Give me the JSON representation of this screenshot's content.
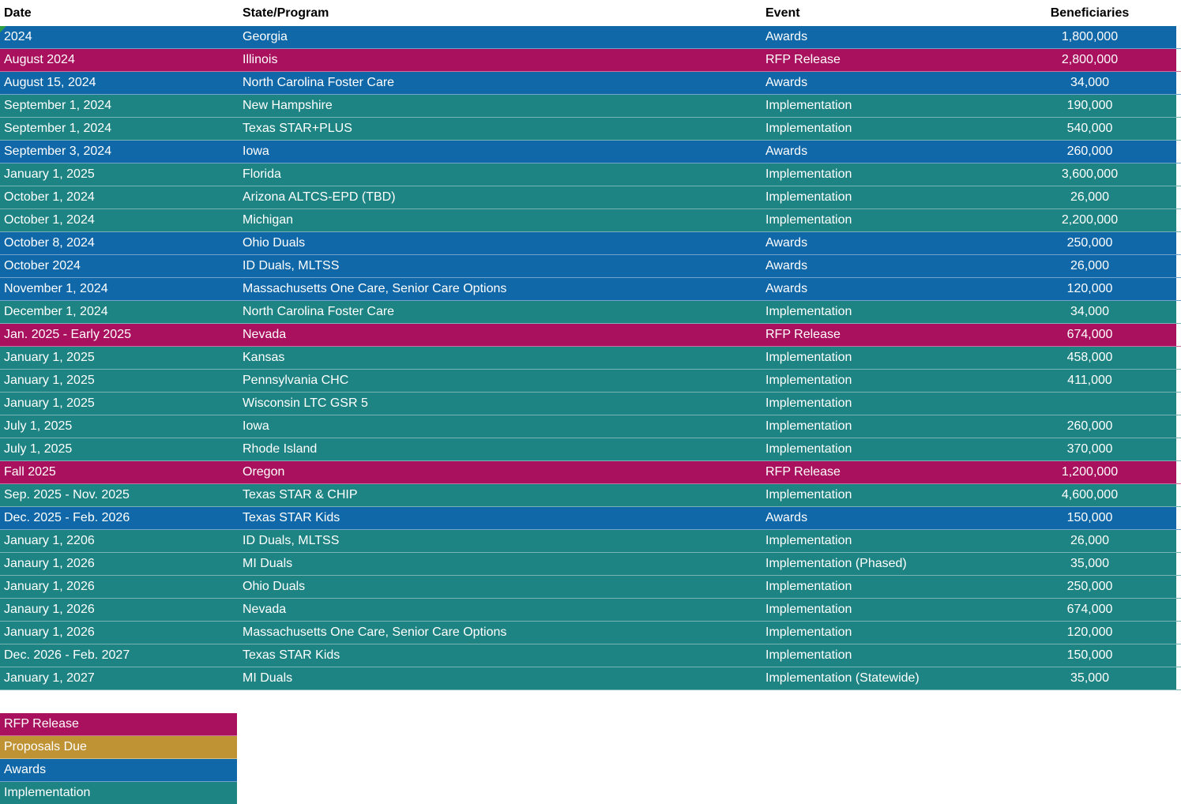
{
  "colors": {
    "rfp": "#A9115E",
    "proposals": "#BF9233",
    "awards": "#1168A8",
    "implementation": "#1E8383",
    "header_text": "#000000",
    "row_text": "#FFFFFF",
    "error_indicator": "#2F9E44"
  },
  "table": {
    "columns": [
      "Date",
      "State/Program",
      "Event",
      "Beneficiaries"
    ],
    "rows": [
      {
        "date": "2024",
        "program": "Georgia",
        "event": "Awards",
        "beneficiaries": "1,800,000",
        "category": "awards",
        "error_indicator": true
      },
      {
        "date": "August 2024",
        "program": "Illinois",
        "event": "RFP Release",
        "beneficiaries": "2,800,000",
        "category": "rfp"
      },
      {
        "date": "August 15, 2024",
        "program": "North Carolina Foster Care",
        "event": "Awards",
        "beneficiaries": "34,000",
        "category": "awards"
      },
      {
        "date": "September 1, 2024",
        "program": "New Hampshire",
        "event": "Implementation",
        "beneficiaries": "190,000",
        "category": "implementation"
      },
      {
        "date": "September 1, 2024",
        "program": "Texas STAR+PLUS",
        "event": "Implementation",
        "beneficiaries": "540,000",
        "category": "implementation"
      },
      {
        "date": "September 3, 2024",
        "program": "Iowa",
        "event": "Awards",
        "beneficiaries": "260,000",
        "category": "awards"
      },
      {
        "date": "January 1, 2025",
        "program": "Florida",
        "event": "Implementation",
        "beneficiaries": "3,600,000",
        "category": "implementation"
      },
      {
        "date": "October 1, 2024",
        "program": "Arizona ALTCS-EPD (TBD)",
        "event": "Implementation",
        "beneficiaries": "26,000",
        "category": "implementation"
      },
      {
        "date": "October 1, 2024",
        "program": "Michigan",
        "event": "Implementation",
        "beneficiaries": "2,200,000",
        "category": "implementation"
      },
      {
        "date": "October 8, 2024",
        "program": "Ohio Duals",
        "event": "Awards",
        "beneficiaries": "250,000",
        "category": "awards"
      },
      {
        "date": "October 2024",
        "program": "ID Duals, MLTSS",
        "event": "Awards",
        "beneficiaries": "26,000",
        "category": "awards"
      },
      {
        "date": "November 1, 2024",
        "program": "Massachusetts One Care, Senior Care Options",
        "event": "Awards",
        "beneficiaries": "120,000",
        "category": "awards"
      },
      {
        "date": "December 1, 2024",
        "program": "North Carolina Foster Care",
        "event": "Implementation",
        "beneficiaries": "34,000",
        "category": "implementation"
      },
      {
        "date": "Jan. 2025 - Early 2025",
        "program": "Nevada",
        "event": "RFP Release",
        "beneficiaries": "674,000",
        "category": "rfp"
      },
      {
        "date": "January 1, 2025",
        "program": "Kansas",
        "event": "Implementation",
        "beneficiaries": "458,000",
        "category": "implementation"
      },
      {
        "date": "January 1, 2025",
        "program": "Pennsylvania CHC",
        "event": "Implementation",
        "beneficiaries": "411,000",
        "category": "implementation"
      },
      {
        "date": "January 1, 2025",
        "program": "Wisconsin LTC GSR 5",
        "event": "Implementation",
        "beneficiaries": "",
        "category": "implementation"
      },
      {
        "date": "July 1, 2025",
        "program": "Iowa",
        "event": "Implementation",
        "beneficiaries": "260,000",
        "category": "implementation"
      },
      {
        "date": "July 1, 2025",
        "program": "Rhode Island",
        "event": "Implementation",
        "beneficiaries": "370,000",
        "category": "implementation"
      },
      {
        "date": "Fall 2025",
        "program": "Oregon",
        "event": "RFP Release",
        "beneficiaries": "1,200,000",
        "category": "rfp"
      },
      {
        "date": "Sep. 2025 - Nov. 2025",
        "program": "Texas STAR & CHIP",
        "event": "Implementation",
        "beneficiaries": "4,600,000",
        "category": "implementation"
      },
      {
        "date": "Dec. 2025 - Feb. 2026",
        "program": "Texas STAR Kids",
        "event": "Awards",
        "beneficiaries": "150,000",
        "category": "awards"
      },
      {
        "date": "January 1, 2206",
        "program": "ID Duals, MLTSS",
        "event": "Implementation",
        "beneficiaries": "26,000",
        "category": "implementation"
      },
      {
        "date": "Janaury 1, 2026",
        "program": "MI Duals",
        "event": "Implementation (Phased)",
        "beneficiaries": "35,000",
        "category": "implementation"
      },
      {
        "date": "January 1, 2026",
        "program": "Ohio Duals",
        "event": "Implementation",
        "beneficiaries": "250,000",
        "category": "implementation"
      },
      {
        "date": "Janaury 1, 2026",
        "program": "Nevada",
        "event": "Implementation",
        "beneficiaries": "674,000",
        "category": "implementation"
      },
      {
        "date": "January 1, 2026",
        "program": "Massachusetts One Care, Senior Care Options",
        "event": "Implementation",
        "beneficiaries": "120,000",
        "category": "implementation"
      },
      {
        "date": "Dec. 2026 - Feb. 2027",
        "program": "Texas STAR Kids",
        "event": "Implementation",
        "beneficiaries": "150,000",
        "category": "implementation"
      },
      {
        "date": "January 1, 2027",
        "program": "MI Duals",
        "event": "Implementation (Statewide)",
        "beneficiaries": "35,000",
        "category": "implementation"
      }
    ]
  },
  "legend": {
    "items": [
      {
        "label": "RFP Release",
        "category": "rfp"
      },
      {
        "label": "Proposals Due",
        "category": "proposals"
      },
      {
        "label": "Awards",
        "category": "awards"
      },
      {
        "label": "Implementation",
        "category": "implementation"
      }
    ]
  }
}
